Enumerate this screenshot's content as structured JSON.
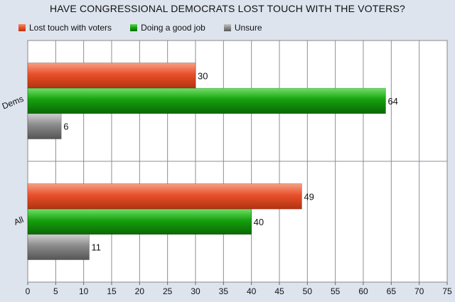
{
  "chart_data": {
    "type": "bar",
    "orientation": "horizontal",
    "title": "HAVE CONGRESSIONAL DEMOCRATS LOST TOUCH WITH THE VOTERS?",
    "categories": [
      "Dems",
      "All"
    ],
    "series": [
      {
        "name": "Lost touch with voters",
        "values": [
          30,
          49
        ],
        "color": "#e8502a"
      },
      {
        "name": "Doing a good job",
        "values": [
          64,
          40
        ],
        "color": "#16a00e"
      },
      {
        "name": "Unsure",
        "values": [
          6,
          11
        ],
        "color": "#8a8a8a"
      }
    ],
    "xlim": [
      0,
      75
    ],
    "xticks": [
      0,
      5,
      10,
      15,
      20,
      25,
      30,
      35,
      40,
      45,
      50,
      55,
      60,
      65,
      70,
      75
    ],
    "grid": true,
    "legend": "top-left"
  }
}
